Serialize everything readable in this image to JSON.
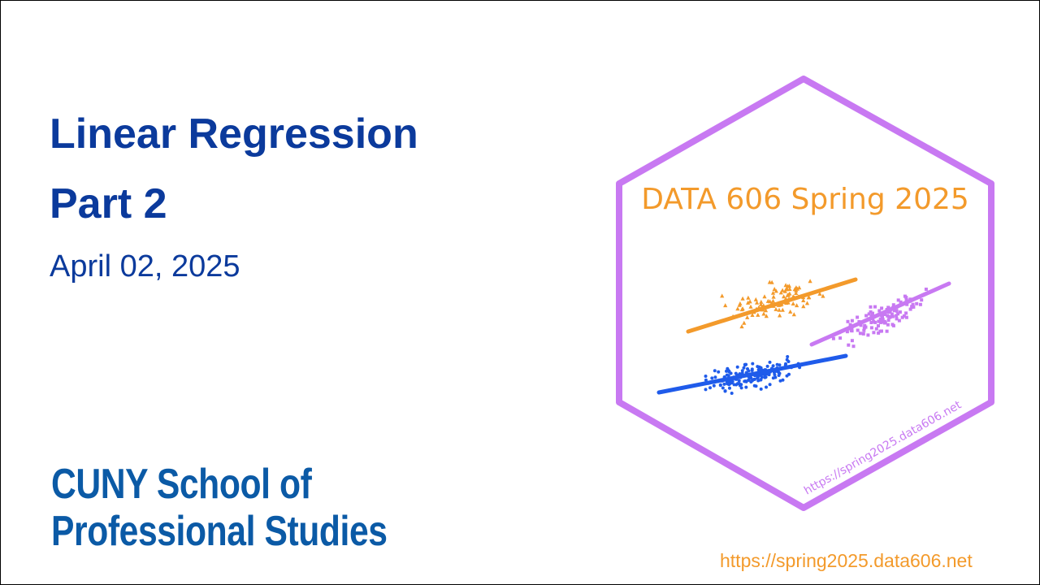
{
  "slide": {
    "title_line1": "Linear Regression",
    "title_line2": "Part 2",
    "date": "April 02, 2025"
  },
  "logo": {
    "line1": "CUNY School of",
    "line2": "Professional Studies"
  },
  "hex_badge": {
    "title": "DATA 606 Spring 2025",
    "url": "https://spring2025.data606.net",
    "colors": {
      "border": "#c879f2",
      "orange": "#f39a2b",
      "blue": "#1f5bea",
      "purple": "#c879f2"
    }
  },
  "footer": {
    "url": "https://spring2025.data606.net"
  },
  "colors": {
    "title": "#0b3a9c",
    "logo": "#0b5aa6",
    "footer_url": "#f39a2b"
  }
}
